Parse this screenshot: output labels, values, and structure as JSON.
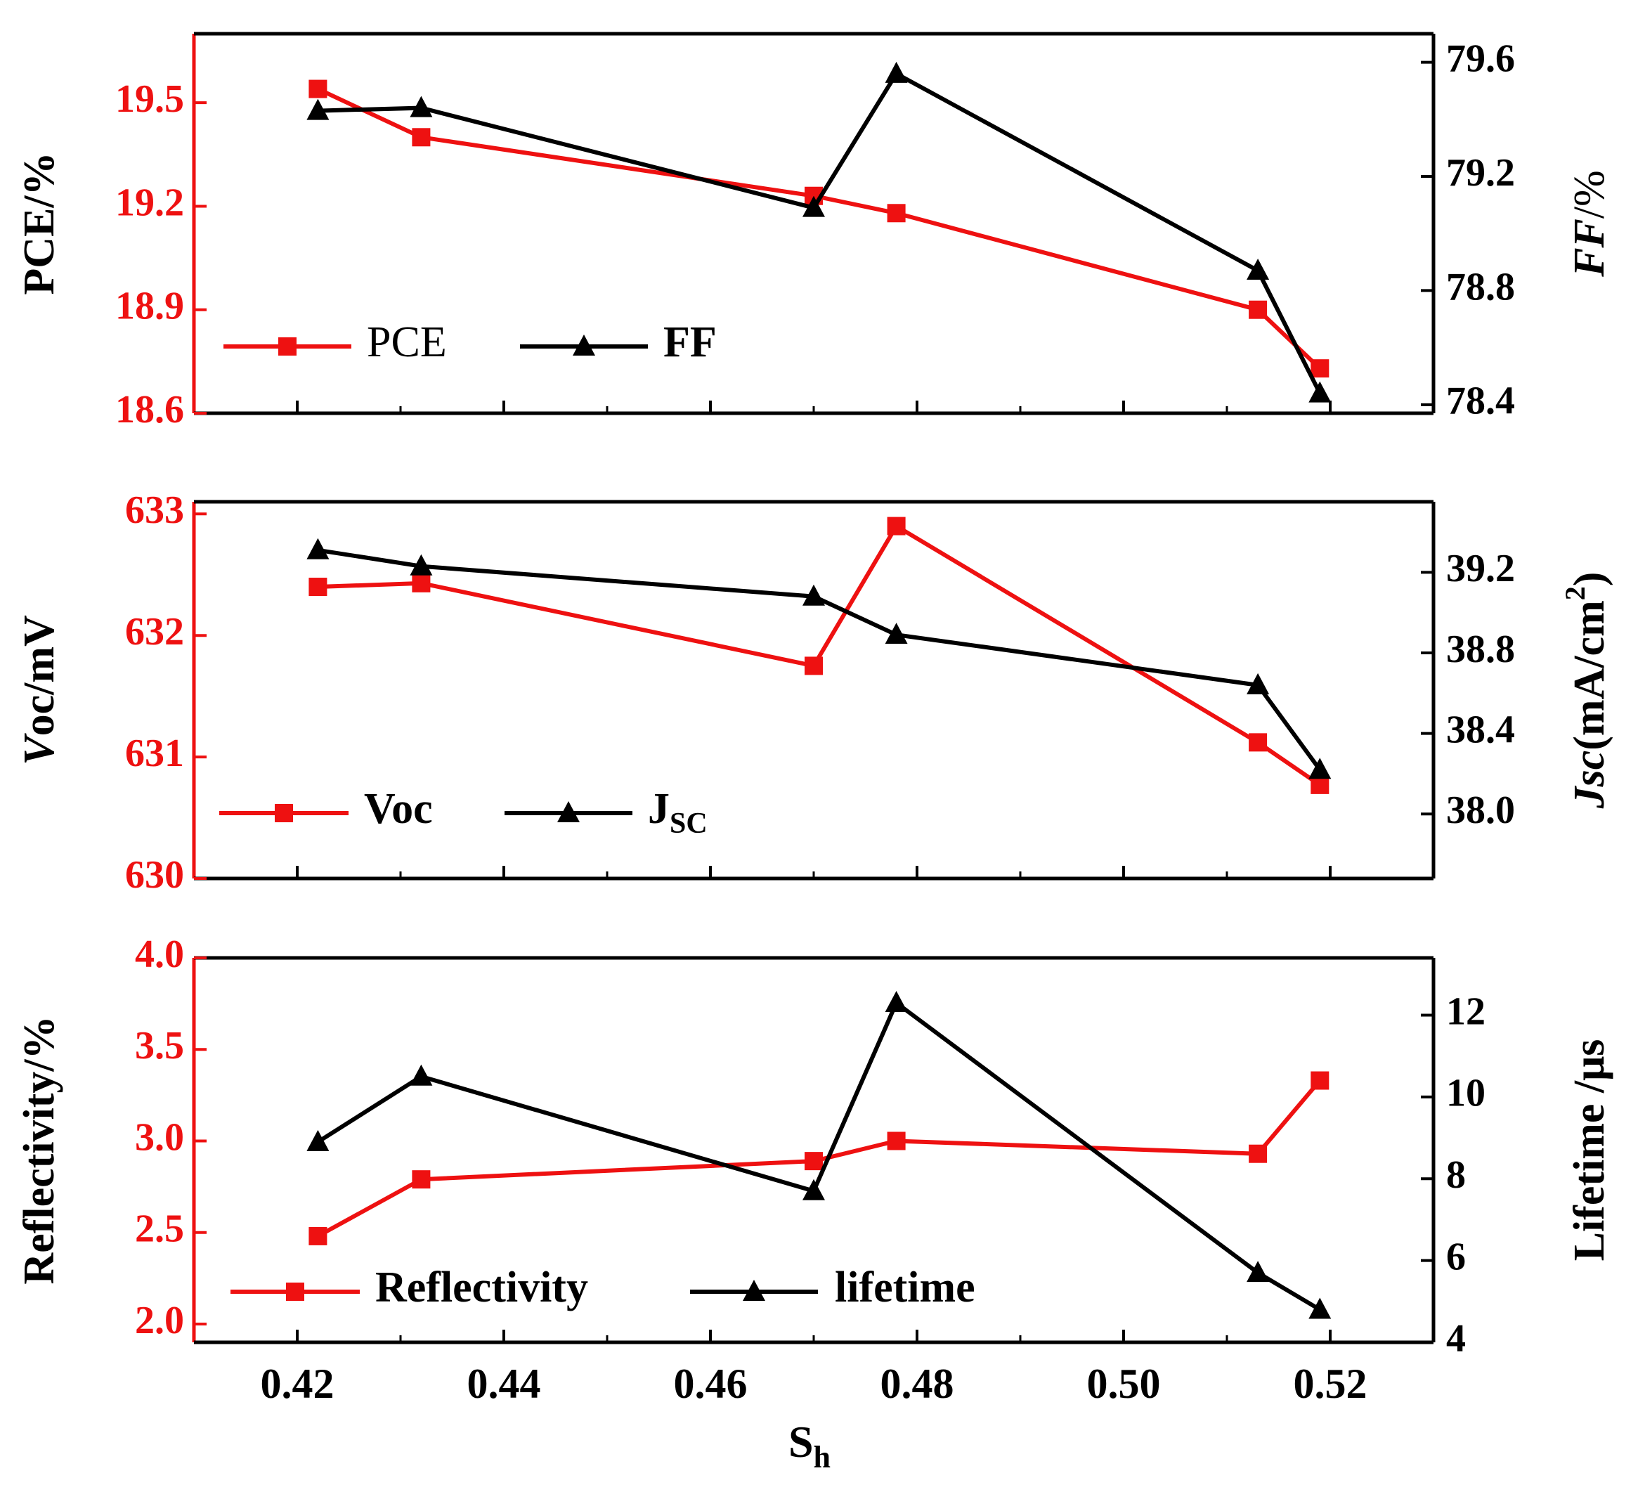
{
  "colors": {
    "red": "#ee1111",
    "black": "#000000"
  },
  "shared_x": {
    "label": "S",
    "label_sub": "h",
    "lim": [
      0.41,
      0.53
    ],
    "ticks": [
      0.42,
      0.44,
      0.46,
      0.48,
      0.5,
      0.52
    ],
    "tick_labels": [
      "0.42",
      "0.44",
      "0.46",
      "0.48",
      "0.50",
      "0.52"
    ]
  },
  "chart_data": [
    {
      "type": "line",
      "panel": "top",
      "xlabel": "S_h",
      "ylabel_left": "PCE/%",
      "ylabel_right": "FF/%",
      "x": [
        0.422,
        0.432,
        0.47,
        0.478,
        0.513,
        0.519
      ],
      "left_axis": {
        "lim": [
          18.6,
          19.7
        ],
        "ticks": [
          18.6,
          18.9,
          19.2,
          19.5
        ],
        "tick_labels": [
          "18.6",
          "18.9",
          "19.2",
          "19.5"
        ]
      },
      "right_axis": {
        "lim": [
          78.37,
          79.7
        ],
        "ticks": [
          78.4,
          78.8,
          79.2,
          79.6
        ],
        "tick_labels": [
          "78.4",
          "78.8",
          "79.2",
          "79.6"
        ]
      },
      "series": [
        {
          "name": "PCE",
          "axis": "left",
          "color": "#ee1111",
          "marker": "square",
          "values": [
            19.54,
            19.4,
            19.23,
            19.18,
            18.9,
            18.73
          ]
        },
        {
          "name": "FF",
          "axis": "right",
          "color": "#000000",
          "marker": "triangle",
          "values": [
            79.43,
            79.44,
            79.09,
            79.56,
            78.87,
            78.44
          ]
        }
      ],
      "legend_placement": "bottom-left",
      "grid": false
    },
    {
      "type": "line",
      "panel": "middle",
      "xlabel": "S_h",
      "ylabel_left": "Voc/mV",
      "ylabel_right": "Jsc(mA/cm2)",
      "x": [
        0.422,
        0.432,
        0.47,
        0.478,
        0.513,
        0.519
      ],
      "left_axis": {
        "lim": [
          630,
          633.1
        ],
        "ticks": [
          630,
          631,
          632,
          633
        ],
        "tick_labels": [
          "630",
          "631",
          "632",
          "633"
        ]
      },
      "right_axis": {
        "lim": [
          37.68,
          39.55
        ],
        "ticks": [
          38.0,
          38.4,
          38.8,
          39.2
        ],
        "tick_labels": [
          "38.0",
          "38.4",
          "38.8",
          "39.2"
        ]
      },
      "series": [
        {
          "name": "Voc",
          "axis": "left",
          "color": "#ee1111",
          "marker": "square",
          "values": [
            632.4,
            632.43,
            631.75,
            632.9,
            631.12,
            630.77
          ]
        },
        {
          "name": "JSC",
          "axis": "right",
          "color": "#000000",
          "marker": "triangle",
          "values": [
            39.31,
            39.23,
            39.08,
            38.89,
            38.64,
            38.22
          ]
        }
      ],
      "legend_placement": "bottom-left",
      "grid": false
    },
    {
      "type": "line",
      "panel": "bottom",
      "xlabel": "S_h",
      "ylabel_left": "Reflectivity/%",
      "ylabel_right": "Lifetime /μs",
      "x": [
        0.422,
        0.432,
        0.47,
        0.478,
        0.513,
        0.519
      ],
      "left_axis": {
        "lim": [
          1.9,
          4.0
        ],
        "ticks": [
          2.0,
          2.5,
          3.0,
          3.5,
          4.0
        ],
        "tick_labels": [
          "2.0",
          "2.5",
          "3.0",
          "3.5",
          "4.0"
        ]
      },
      "right_axis": {
        "lim": [
          4.0,
          13.4
        ],
        "ticks": [
          4,
          6,
          8,
          10,
          12
        ],
        "tick_labels": [
          "4",
          "6",
          "8",
          "10",
          "12"
        ]
      },
      "series": [
        {
          "name": "Reflectivity",
          "axis": "left",
          "color": "#ee1111",
          "marker": "square",
          "values": [
            2.48,
            2.79,
            2.89,
            3.0,
            2.93,
            3.33
          ]
        },
        {
          "name": "lifetime",
          "axis": "right",
          "color": "#000000",
          "marker": "triangle",
          "values": [
            8.9,
            10.5,
            7.7,
            12.3,
            5.7,
            4.8
          ]
        }
      ],
      "legend_placement": "bottom-left",
      "grid": false
    }
  ]
}
